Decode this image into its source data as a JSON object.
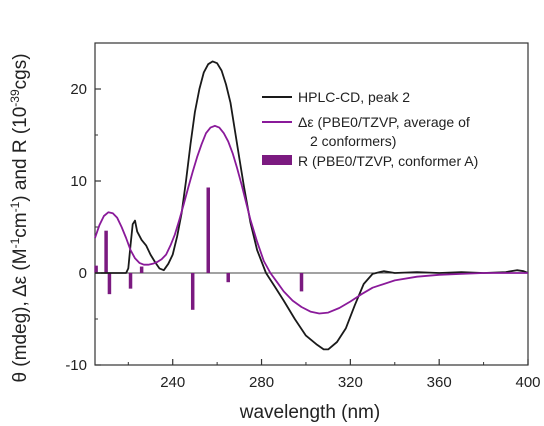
{
  "chart_data": {
    "type": "line",
    "xlabel": "wavelength (nm)",
    "ylabel_parts": {
      "a": "θ (mdeg), Δε (M",
      "sup1": "-1",
      "b": "cm",
      "sup2": "-1",
      "c": ") and R (10",
      "sup3": "-39",
      "d": "cgs)"
    },
    "xlim": [
      205,
      400
    ],
    "ylim": [
      -10,
      25
    ],
    "x_ticks": [
      240,
      280,
      320,
      360,
      400
    ],
    "y_ticks": [
      -10,
      0,
      10,
      20
    ],
    "legend_position": "top-right",
    "series": [
      {
        "name": "HPLC-CD, peak 2",
        "kind": "line",
        "color": "#1a1a1a",
        "x": [
          205,
          210,
          215,
          219,
          220,
          221,
          222,
          223,
          224,
          226,
          228,
          230,
          232,
          234,
          236,
          238,
          240,
          242,
          244,
          246,
          248,
          250,
          252,
          254,
          256,
          258,
          260,
          262,
          264,
          266,
          268,
          270,
          272,
          275,
          278,
          282,
          286,
          290,
          295,
          300,
          305,
          308,
          310,
          314,
          318,
          322,
          326,
          330,
          335,
          340,
          350,
          360,
          370,
          380,
          390,
          395,
          398,
          400
        ],
        "y": [
          0,
          0,
          0,
          0,
          0.5,
          3,
          5.3,
          5.7,
          4.5,
          3.6,
          3,
          2,
          1.2,
          0.5,
          0.3,
          1,
          2,
          4,
          6.5,
          10,
          14,
          17.5,
          20,
          21.8,
          22.7,
          23,
          22.8,
          22,
          20.5,
          18.5,
          15.5,
          12.5,
          9.5,
          5.5,
          2.5,
          0,
          -1.5,
          -3,
          -5,
          -6.8,
          -7.8,
          -8.3,
          -8.3,
          -7.5,
          -6,
          -3.5,
          -1.2,
          -0.1,
          0.2,
          0,
          0.1,
          0,
          0.1,
          0,
          0.1,
          0.3,
          0.2,
          0
        ]
      },
      {
        "name_parts": {
          "a": "Δε (PBE0/TZVP, average of",
          "b": "2 conformers)"
        },
        "kind": "line",
        "color": "#8a1a9a",
        "x": [
          205,
          207,
          209,
          211,
          213,
          215,
          217,
          219,
          221,
          223,
          225,
          227,
          229,
          231,
          233,
          235,
          237,
          239,
          241,
          243,
          245,
          247,
          249,
          251,
          253,
          255,
          257,
          259,
          261,
          263,
          265,
          267,
          269,
          271,
          273,
          275,
          278,
          281,
          284,
          287,
          290,
          294,
          298,
          302,
          306,
          310,
          315,
          320,
          325,
          330,
          340,
          350,
          360,
          370,
          380,
          390,
          400
        ],
        "y": [
          3.8,
          5.2,
          6.2,
          6.6,
          6.5,
          6,
          5,
          3.8,
          2.5,
          1.6,
          1.1,
          0.9,
          0.9,
          1,
          1.2,
          1.5,
          2,
          3,
          4.2,
          5.8,
          7.5,
          9.3,
          11,
          12.6,
          14,
          15.2,
          15.8,
          16,
          15.8,
          15.2,
          14.3,
          13,
          11.4,
          9.6,
          7.7,
          5.8,
          3.4,
          1.3,
          0,
          -1,
          -2,
          -3,
          -3.7,
          -4.2,
          -4.4,
          -4.3,
          -3.8,
          -3.1,
          -2.3,
          -1.6,
          -0.8,
          -0.4,
          -0.2,
          -0.1,
          0,
          0,
          0
        ]
      },
      {
        "name": "R (PBE0/TZVP, conformer A)",
        "kind": "stick",
        "color": "#7b1a80",
        "x": [
          205.5,
          210,
          211.5,
          221,
          226,
          249,
          256,
          265,
          298
        ],
        "y": [
          0.8,
          4.6,
          -2.3,
          -1.7,
          0.7,
          -4,
          9.3,
          -1,
          -2
        ]
      }
    ]
  }
}
